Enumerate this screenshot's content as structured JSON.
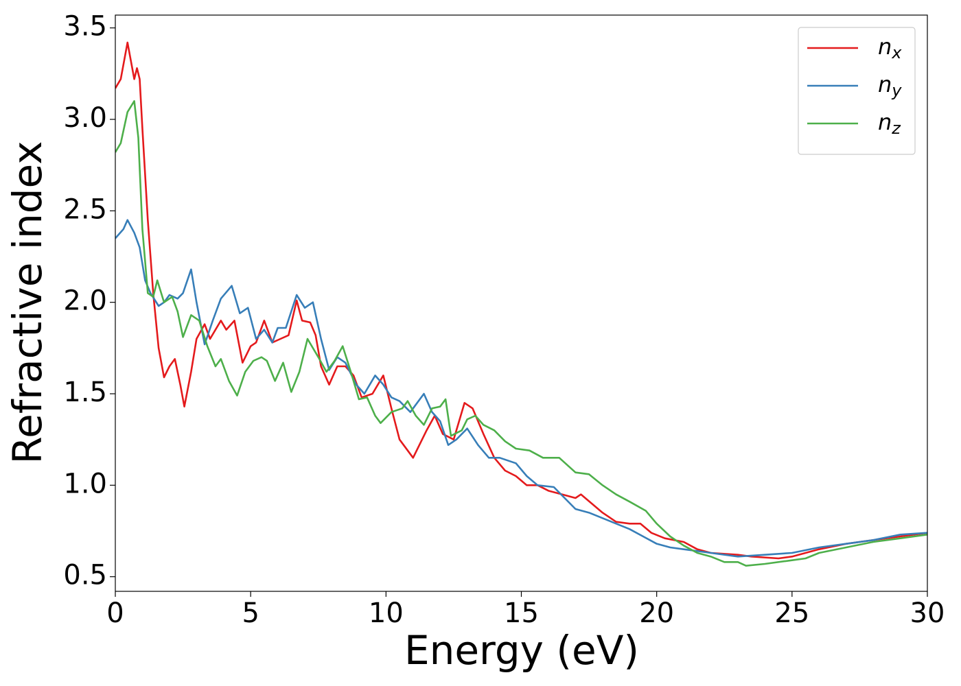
{
  "chart_data": {
    "type": "line",
    "xlabel": "Energy (eV)",
    "ylabel": "Refractive index",
    "xlim": [
      0,
      30
    ],
    "xticks": [
      0,
      5,
      10,
      15,
      20,
      25,
      30
    ],
    "ylim": [
      0.42,
      3.57
    ],
    "yticks": [
      0.5,
      {
        "value": 1.0,
        "label": "1.0"
      },
      1.5,
      {
        "value": 2.0,
        "label": "2.0"
      },
      2.5,
      {
        "value": 3.0,
        "label": "3.0"
      },
      3.5
    ],
    "grid": false,
    "legend": "upper right",
    "series": [
      {
        "name": "nx",
        "color": "#e41a1c",
        "x": [
          0,
          0.2,
          0.45,
          0.6,
          0.7,
          0.8,
          0.9,
          1.0,
          1.2,
          1.4,
          1.6,
          1.8,
          2.0,
          2.2,
          2.4,
          2.55,
          2.8,
          3.0,
          3.3,
          3.5,
          3.9,
          4.1,
          4.4,
          4.7,
          5.0,
          5.2,
          5.5,
          5.8,
          6.1,
          6.4,
          6.7,
          6.9,
          7.2,
          7.4,
          7.6,
          7.9,
          8.2,
          8.5,
          8.8,
          9.1,
          9.5,
          9.9,
          10.2,
          10.5,
          11.0,
          11.5,
          11.8,
          12.1,
          12.5,
          12.9,
          13.2,
          13.6,
          14.0,
          14.4,
          14.8,
          15.2,
          15.6,
          16.0,
          16.5,
          17.0,
          17.2,
          17.6,
          18.0,
          18.5,
          19.0,
          19.4,
          19.8,
          20.3,
          21.0,
          21.5,
          22.0,
          23.0,
          23.5,
          24.5,
          25,
          26,
          27,
          28,
          29,
          30
        ],
        "values": [
          3.17,
          3.22,
          3.42,
          3.3,
          3.22,
          3.28,
          3.22,
          2.95,
          2.45,
          2.05,
          1.75,
          1.59,
          1.65,
          1.69,
          1.55,
          1.43,
          1.62,
          1.8,
          1.88,
          1.8,
          1.9,
          1.85,
          1.9,
          1.67,
          1.76,
          1.78,
          1.9,
          1.78,
          1.8,
          1.82,
          2.01,
          1.9,
          1.89,
          1.82,
          1.65,
          1.55,
          1.65,
          1.65,
          1.6,
          1.48,
          1.5,
          1.6,
          1.42,
          1.25,
          1.15,
          1.3,
          1.38,
          1.28,
          1.25,
          1.45,
          1.42,
          1.28,
          1.15,
          1.08,
          1.05,
          1.0,
          1.0,
          0.97,
          0.95,
          0.93,
          0.95,
          0.9,
          0.85,
          0.8,
          0.79,
          0.79,
          0.74,
          0.71,
          0.69,
          0.65,
          0.63,
          0.62,
          0.61,
          0.6,
          0.61,
          0.65,
          0.68,
          0.7,
          0.72,
          0.74
        ]
      },
      {
        "name": "ny",
        "color": "#377eb8",
        "x": [
          0,
          0.3,
          0.45,
          0.7,
          0.9,
          1.1,
          1.3,
          1.6,
          1.8,
          2.0,
          2.3,
          2.5,
          2.8,
          3.0,
          3.3,
          3.6,
          3.9,
          4.3,
          4.6,
          4.9,
          5.2,
          5.5,
          5.8,
          6.0,
          6.3,
          6.7,
          7.0,
          7.3,
          7.6,
          7.9,
          8.2,
          8.5,
          8.9,
          9.2,
          9.6,
          9.9,
          10.2,
          10.5,
          10.9,
          11.4,
          11.7,
          12.0,
          12.3,
          12.6,
          13.0,
          13.4,
          13.8,
          14.2,
          14.8,
          15.2,
          15.6,
          16.2,
          16.6,
          17.0,
          17.5,
          18.0,
          18.5,
          19.0,
          19.5,
          20.0,
          20.5,
          21.0,
          22.0,
          23.0,
          24.0,
          25,
          26,
          27,
          28,
          29,
          30
        ],
        "values": [
          2.35,
          2.4,
          2.45,
          2.38,
          2.3,
          2.12,
          2.05,
          1.98,
          2.0,
          2.04,
          2.02,
          2.05,
          2.18,
          2.0,
          1.77,
          1.9,
          2.02,
          2.09,
          1.94,
          1.97,
          1.8,
          1.85,
          1.78,
          1.86,
          1.86,
          2.04,
          1.97,
          2.0,
          1.8,
          1.63,
          1.7,
          1.67,
          1.55,
          1.5,
          1.6,
          1.55,
          1.48,
          1.46,
          1.4,
          1.5,
          1.4,
          1.35,
          1.22,
          1.25,
          1.31,
          1.22,
          1.15,
          1.15,
          1.12,
          1.05,
          1.0,
          0.99,
          0.93,
          0.87,
          0.85,
          0.82,
          0.79,
          0.76,
          0.72,
          0.68,
          0.66,
          0.65,
          0.63,
          0.61,
          0.62,
          0.63,
          0.66,
          0.68,
          0.7,
          0.73,
          0.74
        ]
      },
      {
        "name": "nz",
        "color": "#4daf4a",
        "x": [
          0,
          0.2,
          0.45,
          0.7,
          0.85,
          1.0,
          1.2,
          1.4,
          1.55,
          1.8,
          2.1,
          2.3,
          2.5,
          2.8,
          3.1,
          3.4,
          3.7,
          3.9,
          4.2,
          4.5,
          4.8,
          5.1,
          5.4,
          5.6,
          5.9,
          6.2,
          6.5,
          6.8,
          7.1,
          7.5,
          7.8,
          8.1,
          8.4,
          8.7,
          9.0,
          9.3,
          9.6,
          9.8,
          10.2,
          10.6,
          10.8,
          11.1,
          11.4,
          11.7,
          12.0,
          12.2,
          12.4,
          12.8,
          13.0,
          13.3,
          13.6,
          14.0,
          14.4,
          14.8,
          15.3,
          15.8,
          16.4,
          17.0,
          17.5,
          18.0,
          18.5,
          19.0,
          19.6,
          20.0,
          20.5,
          21.0,
          21.5,
          22.0,
          22.5,
          23.0,
          23.3,
          24.0,
          25.0,
          25.5,
          26,
          27,
          28,
          29,
          30
        ],
        "values": [
          2.82,
          2.87,
          3.04,
          3.1,
          2.9,
          2.4,
          2.05,
          2.03,
          2.12,
          2.0,
          2.03,
          1.95,
          1.81,
          1.93,
          1.9,
          1.76,
          1.65,
          1.69,
          1.57,
          1.49,
          1.62,
          1.68,
          1.7,
          1.68,
          1.57,
          1.67,
          1.51,
          1.62,
          1.8,
          1.7,
          1.62,
          1.68,
          1.76,
          1.62,
          1.47,
          1.48,
          1.38,
          1.34,
          1.4,
          1.42,
          1.46,
          1.38,
          1.33,
          1.42,
          1.43,
          1.47,
          1.27,
          1.3,
          1.36,
          1.38,
          1.33,
          1.3,
          1.24,
          1.2,
          1.19,
          1.15,
          1.15,
          1.07,
          1.06,
          1.0,
          0.95,
          0.91,
          0.86,
          0.79,
          0.72,
          0.67,
          0.63,
          0.61,
          0.58,
          0.58,
          0.56,
          0.57,
          0.59,
          0.6,
          0.63,
          0.66,
          0.69,
          0.71,
          0.73
        ]
      }
    ]
  }
}
